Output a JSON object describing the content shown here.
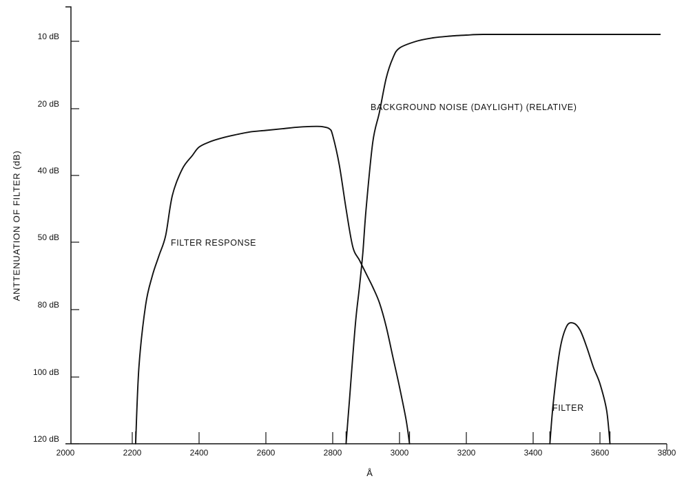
{
  "chart_data": {
    "type": "line",
    "title": "",
    "xlabel": "Å",
    "ylabel": "ANTTENUATION OF FILTER (dB)",
    "xlim": [
      2000,
      3800
    ],
    "x_ticks": [
      2000,
      2200,
      2400,
      2600,
      2800,
      3000,
      3200,
      3400,
      3600,
      3800
    ],
    "y_ticks": [
      "10 dB",
      "20 dB",
      "40 dB",
      "50 dB",
      "80 dB",
      "100 dB",
      "120 dB"
    ],
    "y_scale": "nonlinear (labels as printed)",
    "grid": false,
    "series": [
      {
        "name": "FILTER RESPONSE",
        "x": [
          2210,
          2220,
          2240,
          2260,
          2280,
          2300,
          2320,
          2350,
          2380,
          2400,
          2430,
          2460,
          2500,
          2550,
          2600,
          2650,
          2700,
          2750,
          2770,
          2790,
          2800,
          2820,
          2840,
          2860,
          2880,
          2900,
          2920,
          2940,
          2960,
          2980,
          3000,
          3020,
          3030
        ],
        "y": [
          120,
          97,
          78,
          65,
          56,
          49,
          43,
          38,
          34,
          31.5,
          30,
          29,
          28,
          27,
          26.5,
          26,
          25.5,
          25.3,
          25.4,
          26,
          28,
          37,
          45,
          52,
          58,
          64,
          70,
          77,
          85,
          94,
          103,
          113,
          120
        ]
      },
      {
        "name": "BACKGROUND NOISE (DAYLIGHT) (RELATIVE)",
        "x": [
          2840,
          2850,
          2860,
          2870,
          2880,
          2890,
          2900,
          2920,
          2940,
          2960,
          2980,
          3000,
          3050,
          3100,
          3150,
          3200,
          3250,
          3400,
          3600,
          3780
        ],
        "y": [
          120,
          107,
          94,
          82,
          70,
          55,
          45,
          30,
          21,
          15.5,
          12.5,
          11,
          10,
          9,
          8.5,
          8.2,
          8,
          8,
          8,
          8
        ]
      },
      {
        "name": "FILTER",
        "x": [
          3450,
          3460,
          3480,
          3500,
          3520,
          3540,
          3560,
          3580,
          3600,
          3620,
          3630
        ],
        "y": [
          120,
          108,
          92,
          85,
          84,
          86,
          91,
          97,
          102,
          110,
          120
        ]
      }
    ],
    "annotations": [
      "FILTER RESPONSE",
      "BACKGROUND NOISE (DAYLIGHT) (RELATIVE)",
      "FILTER"
    ]
  }
}
